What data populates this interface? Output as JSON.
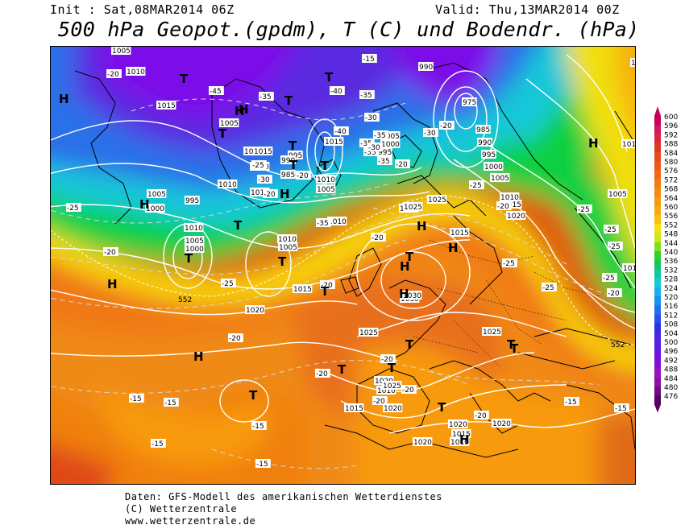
{
  "header": {
    "init": "Init : Sat,08MAR2014 06Z",
    "valid": "Valid: Thu,13MAR2014 00Z",
    "title": "500 hPa Geopot.(gpdm), T (C) und Bodendr. (hPa)"
  },
  "footer": {
    "line1": "Daten: GFS-Modell des amerikanischen Wetterdienstes",
    "line2": "(C) Wetterzentrale",
    "line3": "www.wetterzentrale.de"
  },
  "colors": {
    "purple": "#7c10e8",
    "violet": "#5a2ae0",
    "blue": "#2a5ae8",
    "cyan": "#18c8d8",
    "green": "#10d040",
    "lime": "#90e020",
    "yellow": "#f0e010",
    "amber": "#f8b010",
    "orange": "#f08010",
    "darkorange": "#e05a10",
    "red": "#d83818"
  },
  "scale": {
    "values": [
      "600",
      "596",
      "592",
      "588",
      "584",
      "580",
      "576",
      "572",
      "568",
      "564",
      "560",
      "556",
      "552",
      "548",
      "544",
      "540",
      "536",
      "532",
      "528",
      "524",
      "520",
      "516",
      "512",
      "508",
      "504",
      "500",
      "496",
      "492",
      "488",
      "484",
      "480",
      "476"
    ],
    "colors": [
      "#c8005a",
      "#d01860",
      "#d82840",
      "#e03828",
      "#e84a20",
      "#ec5a18",
      "#f06a14",
      "#f27a12",
      "#f48a10",
      "#f69a10",
      "#f8aa10",
      "#f8c010",
      "#f8e010",
      "#c8e820",
      "#80e020",
      "#30d030",
      "#10c860",
      "#10c8a0",
      "#18c8d8",
      "#18b0e8",
      "#1890f0",
      "#2070f0",
      "#2a50e8",
      "#3030e0",
      "#4828e0",
      "#5a20e0",
      "#7010e0",
      "#8410d8",
      "#9a10c8",
      "#8a10a0",
      "#700a80",
      "#580060"
    ]
  },
  "map_labels": {
    "pressure": [
      {
        "text": "1005"
      },
      {
        "text": "1010"
      },
      {
        "text": "1015"
      },
      {
        "text": "1005"
      },
      {
        "text": "1015"
      },
      {
        "text": "1010"
      },
      {
        "text": "1005"
      },
      {
        "text": "1000"
      },
      {
        "text": "995"
      },
      {
        "text": "1010"
      },
      {
        "text": "1005"
      },
      {
        "text": "1000"
      },
      {
        "text": "995"
      },
      {
        "text": "990"
      },
      {
        "text": "985"
      },
      {
        "text": "1015"
      },
      {
        "text": "1020"
      },
      {
        "text": "1010"
      },
      {
        "text": "1015"
      },
      {
        "text": "1010"
      },
      {
        "text": "1005"
      },
      {
        "text": "1010"
      },
      {
        "text": "1005"
      },
      {
        "text": "1000"
      },
      {
        "text": "995"
      },
      {
        "text": "1010"
      },
      {
        "text": "1005"
      },
      {
        "text": "1015"
      },
      {
        "text": "1020"
      },
      {
        "text": "1025"
      },
      {
        "text": "1030"
      },
      {
        "text": "1030"
      },
      {
        "text": "1025"
      },
      {
        "text": "1020"
      },
      {
        "text": "1010"
      },
      {
        "text": "1015"
      },
      {
        "text": "1020"
      },
      {
        "text": "1025"
      },
      {
        "text": "1025"
      },
      {
        "text": "1020"
      },
      {
        "text": "1020"
      },
      {
        "text": "1015"
      },
      {
        "text": "1010"
      },
      {
        "text": "1020"
      },
      {
        "text": "1030"
      },
      {
        "text": "1025"
      },
      {
        "text": "1015"
      },
      {
        "text": "990"
      },
      {
        "text": "975"
      },
      {
        "text": "985"
      },
      {
        "text": "990"
      },
      {
        "text": "995"
      },
      {
        "text": "1000"
      },
      {
        "text": "1005"
      },
      {
        "text": "1010"
      },
      {
        "text": "1015"
      },
      {
        "text": "1020"
      },
      {
        "text": "1025"
      },
      {
        "text": "1010"
      },
      {
        "text": "1005"
      },
      {
        "text": "1010"
      },
      {
        "text": "1015"
      }
    ],
    "temperature": [
      {
        "text": "-35"
      },
      {
        "text": "-45"
      },
      {
        "text": "-35"
      },
      {
        "text": "-40"
      },
      {
        "text": "-35"
      },
      {
        "text": "-30"
      },
      {
        "text": "-35"
      },
      {
        "text": "-40"
      },
      {
        "text": "-35"
      },
      {
        "text": "-35"
      },
      {
        "text": "-35"
      },
      {
        "text": "-30"
      },
      {
        "text": "-25"
      },
      {
        "text": "-20"
      },
      {
        "text": "-25"
      },
      {
        "text": "-30"
      },
      {
        "text": "-20"
      },
      {
        "text": "-20"
      },
      {
        "text": "-20"
      },
      {
        "text": "-20"
      },
      {
        "text": "-20"
      },
      {
        "text": "-25"
      },
      {
        "text": "-20"
      },
      {
        "text": "-20"
      },
      {
        "text": "-20"
      },
      {
        "text": "-20"
      },
      {
        "text": "-20"
      },
      {
        "text": "-15"
      },
      {
        "text": "-15"
      },
      {
        "text": "-15"
      },
      {
        "text": "-15"
      },
      {
        "text": "-15"
      },
      {
        "text": "-25"
      },
      {
        "text": "-25"
      },
      {
        "text": "-25"
      },
      {
        "text": "-25"
      },
      {
        "text": "-25"
      },
      {
        "text": "-25"
      },
      {
        "text": "-20"
      },
      {
        "text": "-30"
      },
      {
        "text": "-15"
      },
      {
        "text": "-20"
      },
      {
        "text": "-25"
      },
      {
        "text": "-20"
      },
      {
        "text": "-20"
      },
      {
        "text": "-15"
      },
      {
        "text": "-15"
      },
      {
        "text": "-35"
      },
      {
        "text": "-20"
      }
    ],
    "geopotential": [
      {
        "text": "552"
      },
      {
        "text": "552"
      }
    ],
    "centers": [
      {
        "text": "H"
      },
      {
        "text": "T"
      },
      {
        "text": "H"
      },
      {
        "text": "T"
      },
      {
        "text": "H"
      },
      {
        "text": "T"
      },
      {
        "text": "T"
      },
      {
        "text": "T"
      },
      {
        "text": "T"
      },
      {
        "text": "T"
      },
      {
        "text": "T"
      },
      {
        "text": "T"
      },
      {
        "text": "H"
      },
      {
        "text": "T"
      },
      {
        "text": "H"
      },
      {
        "text": "T"
      },
      {
        "text": "H"
      },
      {
        "text": "H"
      },
      {
        "text": "T"
      },
      {
        "text": "H"
      },
      {
        "text": "H"
      },
      {
        "text": "T"
      },
      {
        "text": "H"
      },
      {
        "text": "T"
      },
      {
        "text": "T"
      },
      {
        "text": "T"
      },
      {
        "text": "H"
      },
      {
        "text": "T"
      },
      {
        "text": "H"
      },
      {
        "text": "T"
      },
      {
        "text": "T"
      },
      {
        "text": "H"
      }
    ]
  }
}
